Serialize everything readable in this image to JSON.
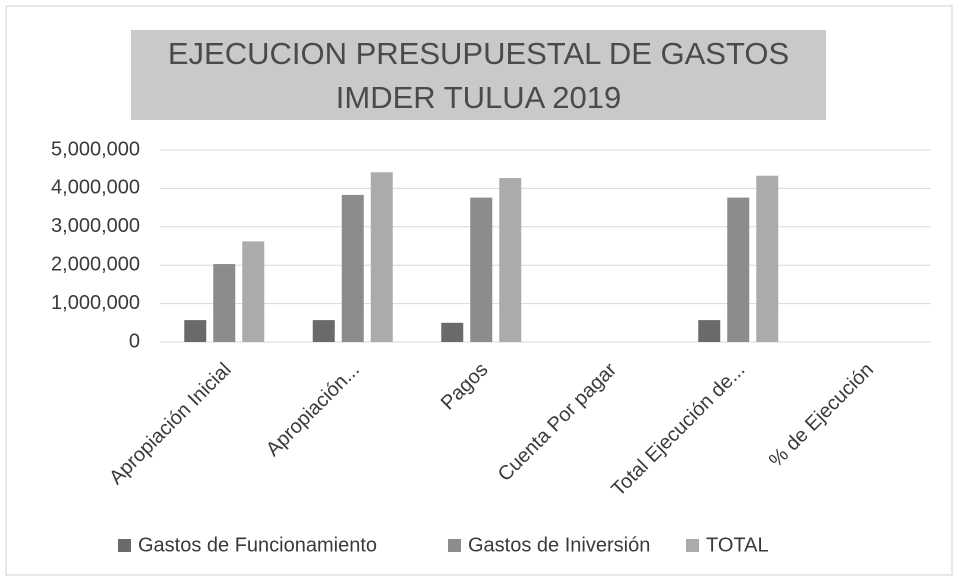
{
  "chart_data": {
    "type": "bar",
    "title": "EJECUCION PRESUPUESTAL DE GASTOS IMDER TULUA 2019",
    "categories": [
      "Apropiación Inicial",
      "Apropiación...",
      "Pagos",
      "Cuenta Por pagar",
      "Total Ejecución de...",
      "% de Ejecución"
    ],
    "series": [
      {
        "name": "Gastos de Funcionamiento",
        "color": "#6a6a6a",
        "values": [
          570000,
          570000,
          500000,
          0,
          570000,
          0
        ]
      },
      {
        "name": "Gastos  de Iniversión",
        "color": "#8c8c8c",
        "values": [
          2030000,
          3830000,
          3760000,
          0,
          3760000,
          0
        ]
      },
      {
        "name": "TOTAL",
        "color": "#ababab",
        "values": [
          2620000,
          4420000,
          4270000,
          0,
          4330000,
          0
        ]
      }
    ],
    "ylim": [
      0,
      5000000
    ],
    "yticks": [
      0,
      {
        "value": 1000000,
        "label": "1,000,000"
      },
      {
        "value": 2000000,
        "label": "2,000,000"
      },
      {
        "value": 3000000,
        "label": "3,000,000"
      },
      {
        "value": 4000000,
        "label": "4,000,000"
      },
      {
        "value": 5000000,
        "label": "5,000,000"
      }
    ],
    "grid": true,
    "legend": "bottom"
  }
}
